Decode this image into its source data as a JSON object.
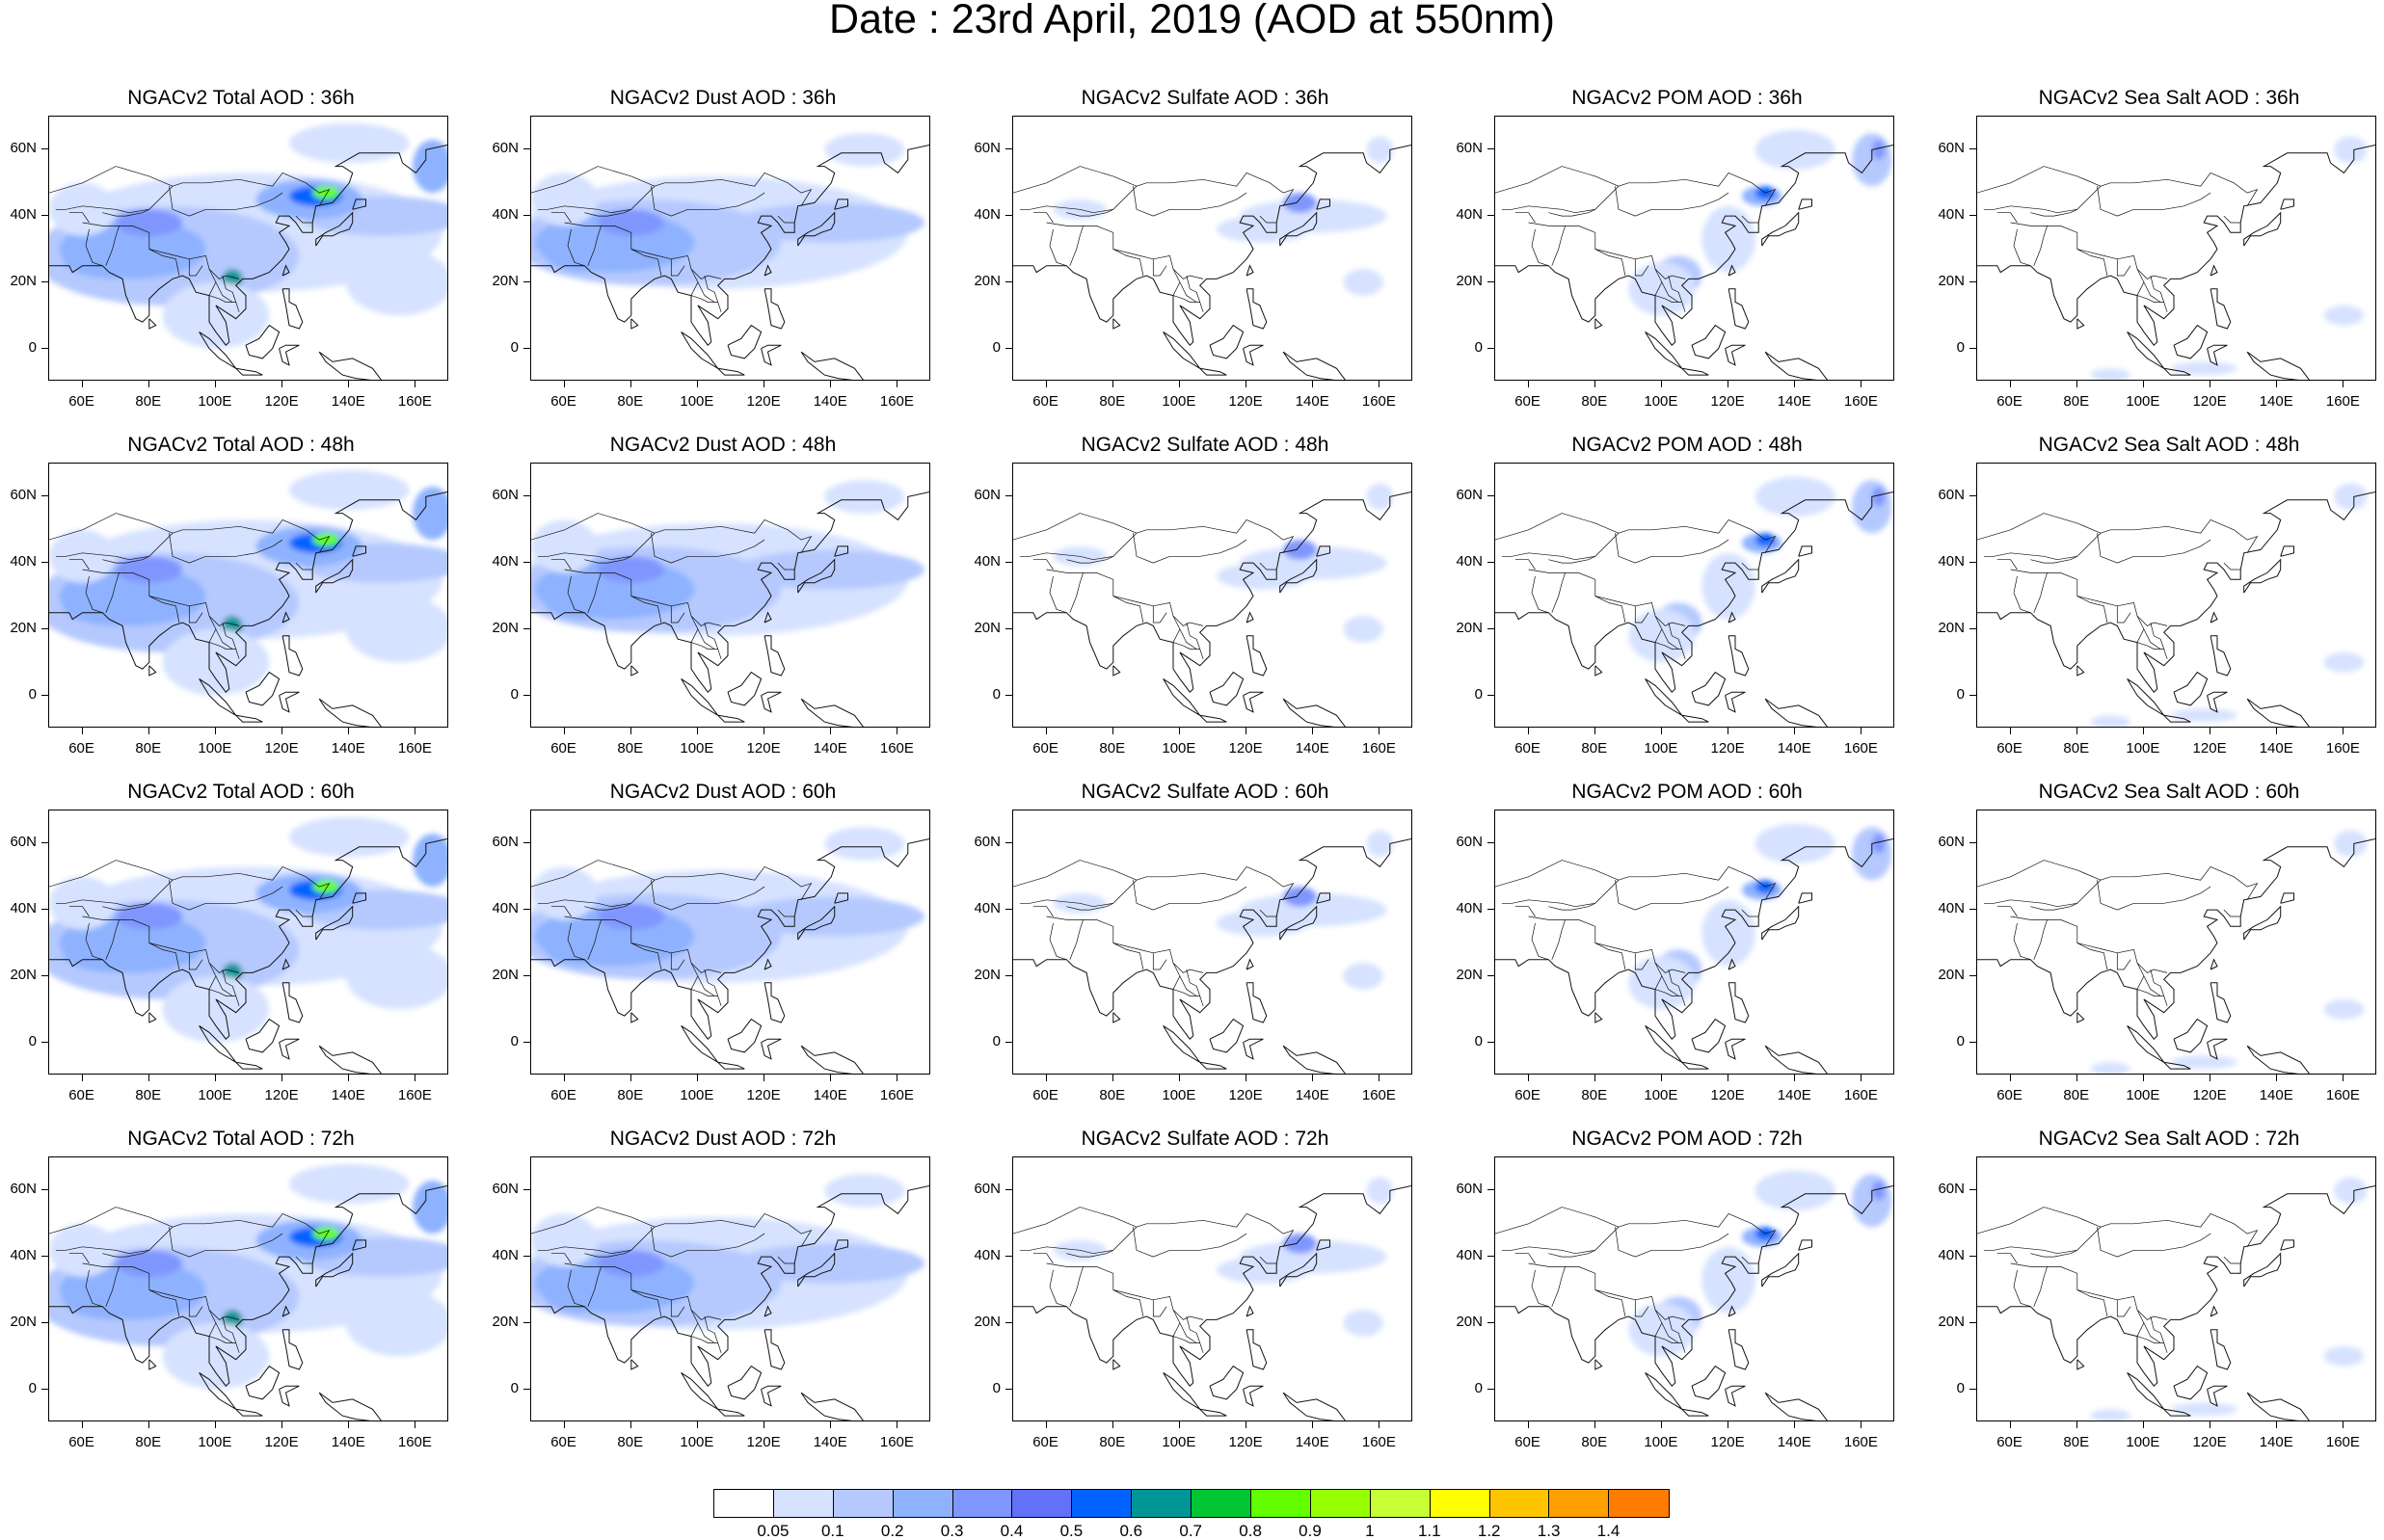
{
  "title": "Date : 23rd April, 2019 (AOD at 550nm)",
  "rows": [
    {
      "lead": "36h",
      "panels": [
        {
          "title": "NGACv2 Total AOD : 36h",
          "species": "total"
        },
        {
          "title": "NGACv2 Dust AOD : 36h",
          "species": "dust"
        },
        {
          "title": "NGACv2 Sulfate AOD : 36h",
          "species": "sulfate"
        },
        {
          "title": "NGACv2 POM AOD : 36h",
          "species": "pom"
        },
        {
          "title": "NGACv2 Sea Salt AOD : 36h",
          "species": "seasalt"
        }
      ]
    },
    {
      "lead": "48h",
      "panels": [
        {
          "title": "NGACv2 Total AOD : 48h",
          "species": "total"
        },
        {
          "title": "NGACv2 Dust AOD : 48h",
          "species": "dust"
        },
        {
          "title": "NGACv2 Sulfate AOD : 48h",
          "species": "sulfate"
        },
        {
          "title": "NGACv2 POM AOD : 48h",
          "species": "pom"
        },
        {
          "title": "NGACv2 Sea Salt AOD : 48h",
          "species": "seasalt"
        }
      ]
    },
    {
      "lead": "60h",
      "panels": [
        {
          "title": "NGACv2 Total AOD : 60h",
          "species": "total"
        },
        {
          "title": "NGACv2 Dust AOD : 60h",
          "species": "dust"
        },
        {
          "title": "NGACv2 Sulfate AOD : 60h",
          "species": "sulfate"
        },
        {
          "title": "NGACv2 POM AOD : 60h",
          "species": "pom"
        },
        {
          "title": "NGACv2 Sea Salt AOD : 60h",
          "species": "seasalt"
        }
      ]
    },
    {
      "lead": "72h",
      "panels": [
        {
          "title": "NGACv2 Total AOD : 72h",
          "species": "total"
        },
        {
          "title": "NGACv2 Dust AOD : 72h",
          "species": "dust"
        },
        {
          "title": "NGACv2 Sulfate AOD : 72h",
          "species": "sulfate"
        },
        {
          "title": "NGACv2 POM AOD : 72h",
          "species": "pom"
        },
        {
          "title": "NGACv2 Sea Salt  AOD : 72h",
          "species": "seasalt"
        }
      ]
    }
  ],
  "axes": {
    "lon_ticks": [
      "60E",
      "80E",
      "100E",
      "120E",
      "140E",
      "160E"
    ],
    "lon_values": [
      60,
      80,
      100,
      120,
      140,
      160
    ],
    "lon_range": [
      50,
      170
    ],
    "lat_ticks": [
      "60N",
      "40N",
      "20N",
      "0"
    ],
    "lat_values": [
      60,
      40,
      20,
      0
    ],
    "lat_range": [
      -10,
      70
    ]
  },
  "colorbar": {
    "labels": [
      "0.05",
      "0.1",
      "0.2",
      "0.3",
      "0.4",
      "0.5",
      "0.6",
      "0.7",
      "0.8",
      "0.9",
      "1",
      "1.1",
      "1.2",
      "1.3",
      "1.4"
    ],
    "colors": [
      "#ffffff",
      "#d6e2ff",
      "#b5c9ff",
      "#8eb2ff",
      "#7f96ff",
      "#6370f8",
      "#0063ff",
      "#009696",
      "#00c633",
      "#63ff00",
      "#96ff00",
      "#c6ff33",
      "#ffff00",
      "#ffc600",
      "#ffa000",
      "#ff7c00",
      "#ff1900"
    ]
  }
}
